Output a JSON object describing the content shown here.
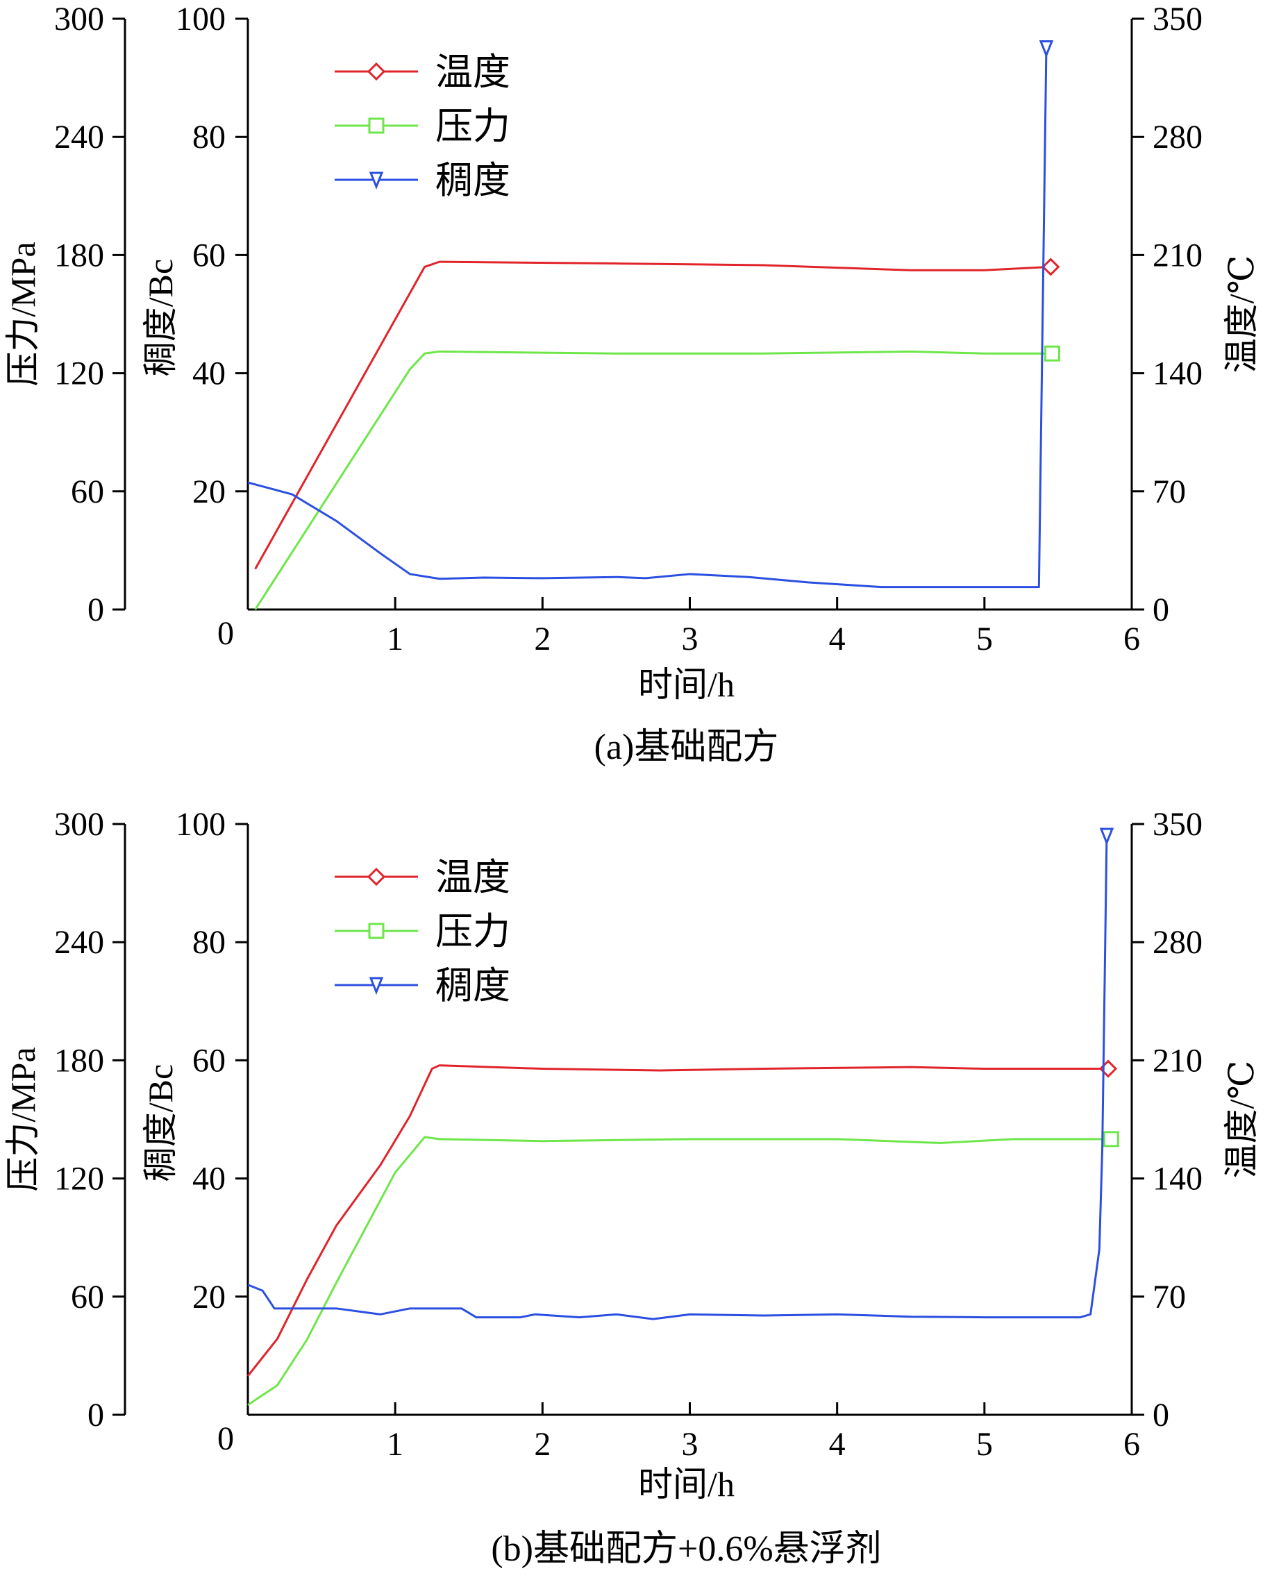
{
  "colors": {
    "temperature": "#e0242a",
    "pressure": "#6ee64a",
    "consistency": "#2b4fe0",
    "axis": "#000000"
  },
  "chart_data": [
    {
      "type": "line",
      "caption": "(a)基础配方",
      "xlabel": "时间/h",
      "xlim": [
        0,
        6
      ],
      "x_ticks": [
        "0",
        "1",
        "2",
        "3",
        "4",
        "5",
        "6"
      ],
      "axes": {
        "pressure": {
          "label": "压力/MPa",
          "range": [
            0,
            300
          ],
          "ticks": [
            "0",
            "60",
            "120",
            "180",
            "240",
            "300"
          ],
          "side": "left-outer"
        },
        "consistency": {
          "label": "稠度/Bc",
          "range": [
            0,
            100
          ],
          "ticks": [
            "20",
            "40",
            "60",
            "80",
            "100"
          ],
          "side": "left-inner"
        },
        "temperature": {
          "label": "温度/℃",
          "range": [
            0,
            350
          ],
          "ticks": [
            "0",
            "70",
            "140",
            "210",
            "280",
            "350"
          ],
          "side": "right"
        }
      },
      "legend": {
        "position": "top-left",
        "entries": [
          {
            "label": "温度",
            "series": "temperature",
            "marker": "diamond"
          },
          {
            "label": "压力",
            "series": "pressure",
            "marker": "square"
          },
          {
            "label": "稠度",
            "series": "consistency",
            "marker": "triangle-down"
          }
        ]
      },
      "series": [
        {
          "name": "温度",
          "key": "temperature",
          "axis": "temperature",
          "marker": "diamond",
          "x": [
            0.05,
            1.2,
            1.3,
            2.5,
            3.5,
            4.5,
            5.0,
            5.45
          ],
          "y": [
            24,
            203,
            206,
            205,
            204,
            201,
            201,
            203
          ]
        },
        {
          "name": "压力",
          "key": "pressure",
          "axis": "pressure",
          "marker": "square",
          "x": [
            0.05,
            1.1,
            1.2,
            1.3,
            2.5,
            3.5,
            4.5,
            5.0,
            5.46
          ],
          "y": [
            0,
            122,
            130,
            131,
            130,
            130,
            131,
            130,
            130
          ]
        },
        {
          "name": "稠度",
          "key": "consistency",
          "axis": "consistency",
          "marker": "triangle-down",
          "x": [
            0.0,
            0.3,
            0.6,
            0.9,
            1.1,
            1.3,
            1.6,
            2.0,
            2.5,
            2.7,
            3.0,
            3.4,
            3.8,
            4.3,
            4.8,
            5.37,
            5.37,
            5.42
          ],
          "y": [
            21.5,
            19.5,
            15,
            9.5,
            6,
            5.2,
            5.4,
            5.3,
            5.5,
            5.3,
            6,
            5.5,
            4.6,
            3.8,
            3.8,
            3.8,
            3.8,
            95
          ]
        }
      ]
    },
    {
      "type": "line",
      "caption": "(b)基础配方+0.6%悬浮剂",
      "xlabel": "时间/h",
      "xlim": [
        0,
        6
      ],
      "x_ticks": [
        "0",
        "1",
        "2",
        "3",
        "4",
        "5",
        "6"
      ],
      "axes": {
        "pressure": {
          "label": "压力/MPa",
          "range": [
            0,
            300
          ],
          "ticks": [
            "0",
            "60",
            "120",
            "180",
            "240",
            "300"
          ],
          "side": "left-outer"
        },
        "consistency": {
          "label": "稠度/Bc",
          "range": [
            0,
            100
          ],
          "ticks": [
            "20",
            "40",
            "60",
            "80",
            "100"
          ],
          "side": "left-inner"
        },
        "temperature": {
          "label": "温度/℃",
          "range": [
            0,
            350
          ],
          "ticks": [
            "0",
            "70",
            "140",
            "210",
            "280",
            "350"
          ],
          "side": "right"
        }
      },
      "legend": {
        "position": "top-left",
        "entries": [
          {
            "label": "温度",
            "series": "temperature",
            "marker": "diamond"
          },
          {
            "label": "压力",
            "series": "pressure",
            "marker": "square"
          },
          {
            "label": "稠度",
            "series": "consistency",
            "marker": "triangle-down"
          }
        ]
      },
      "series": [
        {
          "name": "温度",
          "key": "temperature",
          "axis": "temperature",
          "marker": "diamond",
          "x": [
            0.0,
            0.2,
            0.4,
            0.6,
            0.9,
            1.1,
            1.25,
            1.3,
            2.0,
            2.8,
            3.5,
            4.5,
            5.0,
            5.84
          ],
          "y": [
            23,
            45,
            80,
            112,
            148,
            177,
            205,
            207,
            205,
            204,
            205,
            206,
            205,
            205
          ]
        },
        {
          "name": "压力",
          "key": "pressure",
          "axis": "pressure",
          "marker": "square",
          "x": [
            0.0,
            0.2,
            0.4,
            0.6,
            0.8,
            1.0,
            1.2,
            1.3,
            2.0,
            3.0,
            4.0,
            4.7,
            5.2,
            5.86
          ],
          "y": [
            5,
            15,
            38,
            67,
            95,
            123,
            141,
            140,
            139,
            140,
            140,
            138,
            140,
            140
          ]
        },
        {
          "name": "稠度",
          "key": "consistency",
          "axis": "consistency",
          "marker": "triangle-down",
          "x": [
            0.0,
            0.1,
            0.18,
            0.4,
            0.6,
            0.9,
            1.1,
            1.3,
            1.45,
            1.55,
            1.85,
            1.95,
            2.25,
            2.5,
            2.75,
            3.0,
            3.5,
            4.0,
            4.5,
            5.0,
            5.3,
            5.65,
            5.72,
            5.78,
            5.8,
            5.82,
            5.83
          ],
          "y": [
            22,
            21,
            18,
            18,
            18,
            17,
            18,
            18,
            18,
            16.5,
            16.5,
            17,
            16.5,
            17,
            16.2,
            17,
            16.8,
            17,
            16.6,
            16.5,
            16.5,
            16.5,
            17,
            28,
            45,
            80,
            98
          ]
        }
      ]
    }
  ]
}
